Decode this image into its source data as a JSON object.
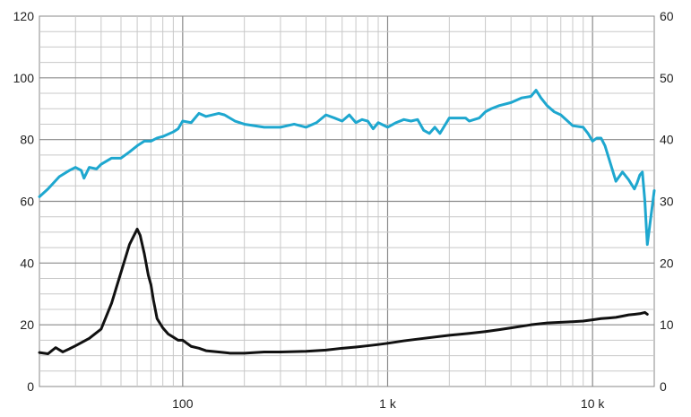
{
  "chart_data": {
    "type": "line",
    "title": "",
    "xlabel": "",
    "ylabel": "",
    "x_scale": "log",
    "xlim": [
      20,
      20000
    ],
    "ylim_left": [
      0,
      120
    ],
    "ylim_right": [
      0,
      60
    ],
    "grid": true,
    "left_ticks": [
      {
        "value": 0,
        "label": "0"
      },
      {
        "value": 20,
        "label": "20"
      },
      {
        "value": 40,
        "label": "40"
      },
      {
        "value": 60,
        "label": "60"
      },
      {
        "value": 80,
        "label": "80"
      },
      {
        "value": 100,
        "label": "100"
      },
      {
        "value": 120,
        "label": "120"
      }
    ],
    "right_ticks": [
      {
        "value": 0,
        "label": "0"
      },
      {
        "value": 10,
        "label": "10"
      },
      {
        "value": 20,
        "label": "20"
      },
      {
        "value": 30,
        "label": "30"
      },
      {
        "value": 40,
        "label": "40"
      },
      {
        "value": 50,
        "label": "50"
      },
      {
        "value": 60,
        "label": "60"
      }
    ],
    "x_ticks": [
      {
        "value": 100,
        "label": "100"
      },
      {
        "value": 1000,
        "label": "1 k"
      },
      {
        "value": 10000,
        "label": "10 k"
      }
    ],
    "series": [
      {
        "color": "#1ea7cf",
        "axis": "left",
        "x": [
          20,
          22,
          25,
          28,
          30,
          32,
          33,
          35,
          38,
          40,
          45,
          50,
          55,
          60,
          65,
          70,
          75,
          80,
          90,
          95,
          100,
          110,
          120,
          130,
          150,
          160,
          180,
          200,
          250,
          300,
          350,
          400,
          450,
          500,
          550,
          600,
          650,
          700,
          750,
          800,
          850,
          900,
          1000,
          1100,
          1200,
          1300,
          1400,
          1500,
          1600,
          1700,
          1800,
          2000,
          2200,
          2400,
          2500,
          2800,
          3000,
          3200,
          3500,
          4000,
          4500,
          5000,
          5300,
          5600,
          6000,
          6500,
          7000,
          8000,
          9000,
          9500,
          10000,
          10500,
          11000,
          11500,
          12000,
          13000,
          14000,
          15000,
          16000,
          16500,
          17000,
          17500,
          18000,
          18500,
          19000,
          20000
        ],
        "values": [
          61.5,
          64,
          68,
          70,
          71,
          70,
          67.5,
          71,
          70.5,
          72,
          74,
          74,
          76,
          78,
          79.5,
          79.5,
          80.5,
          81,
          82.5,
          83.5,
          86,
          85.5,
          88.5,
          87.5,
          88.5,
          88,
          86,
          85,
          84,
          84,
          85,
          84,
          85.5,
          88,
          87,
          86,
          88,
          85.5,
          86.5,
          86,
          83.5,
          85.5,
          84,
          85.5,
          86.5,
          86,
          86.5,
          83,
          82,
          84,
          82,
          87,
          87,
          87,
          86,
          87,
          89,
          90,
          91,
          92,
          93.5,
          94,
          96,
          93.5,
          91,
          89,
          88,
          84.5,
          84,
          82,
          79.5,
          80.5,
          80.5,
          78,
          74,
          66.5,
          69.5,
          67,
          64,
          66,
          68.5,
          69.5,
          60,
          46,
          52,
          63.5
        ]
      },
      {
        "color": "#111111",
        "axis": "right",
        "x": [
          20,
          22,
          24,
          26,
          28,
          30,
          35,
          40,
          45,
          50,
          55,
          60,
          62,
          65,
          68,
          70,
          72,
          75,
          80,
          85,
          90,
          95,
          100,
          110,
          120,
          130,
          150,
          170,
          200,
          250,
          300,
          400,
          500,
          600,
          700,
          800,
          900,
          1000,
          1200,
          1500,
          2000,
          2500,
          3000,
          3500,
          4000,
          5000,
          6000,
          7000,
          8000,
          9000,
          10000,
          11000,
          12000,
          13000,
          14000,
          15000,
          16000,
          17000,
          18000,
          18500
        ],
        "values": [
          5.5,
          5.3,
          6.3,
          5.6,
          6.1,
          6.6,
          7.8,
          9.3,
          13.5,
          18.5,
          23,
          25.5,
          24.5,
          21.5,
          18,
          16.5,
          14,
          11,
          9.5,
          8.5,
          8,
          7.5,
          7.5,
          6.5,
          6.2,
          5.8,
          5.6,
          5.4,
          5.4,
          5.6,
          5.6,
          5.7,
          5.9,
          6.2,
          6.4,
          6.6,
          6.8,
          7,
          7.4,
          7.8,
          8.3,
          8.6,
          8.9,
          9.2,
          9.5,
          10,
          10.3,
          10.4,
          10.5,
          10.6,
          10.8,
          11,
          11.1,
          11.2,
          11.4,
          11.6,
          11.7,
          11.8,
          12,
          11.7
        ]
      }
    ]
  }
}
